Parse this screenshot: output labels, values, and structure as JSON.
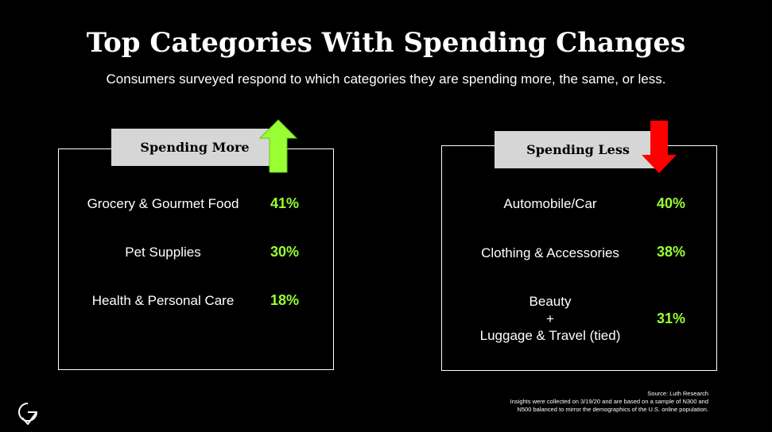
{
  "title": "Top Categories With Spending Changes",
  "subtitle": "Consumers surveyed respond to which categories they are spending more, the same, or less.",
  "spending_more": {
    "heading": "Spending More",
    "arrow_icon": "up-arrow-icon",
    "arrow_color": "#99ff33",
    "items": [
      {
        "label": "Grocery & Gourmet Food",
        "value": "41%"
      },
      {
        "label": "Pet Supplies",
        "value": "30%"
      },
      {
        "label": "Health & Personal Care",
        "value": "18%"
      }
    ]
  },
  "spending_less": {
    "heading": "Spending Less",
    "arrow_icon": "down-arrow-icon",
    "arrow_color": "#ff0000",
    "items": [
      {
        "label": "Automobile/Car",
        "value": "40%"
      },
      {
        "label": "Clothing & Accessories",
        "value": "38%"
      },
      {
        "label_line1": "Beauty",
        "label_line2": "+",
        "label_line3": "Luggage & Travel (tied)",
        "value": "31%"
      }
    ]
  },
  "source": {
    "line1": "Source:  Luth Research",
    "line2": "Insights were collected on 3/19/20 and are based on a sample of N300 and",
    "line3": "N500 balanced to mirror the demographics of the U.S. online population."
  },
  "colors": {
    "background": "#000000",
    "value": "#99ff33",
    "tab": "#d6d6d6"
  }
}
